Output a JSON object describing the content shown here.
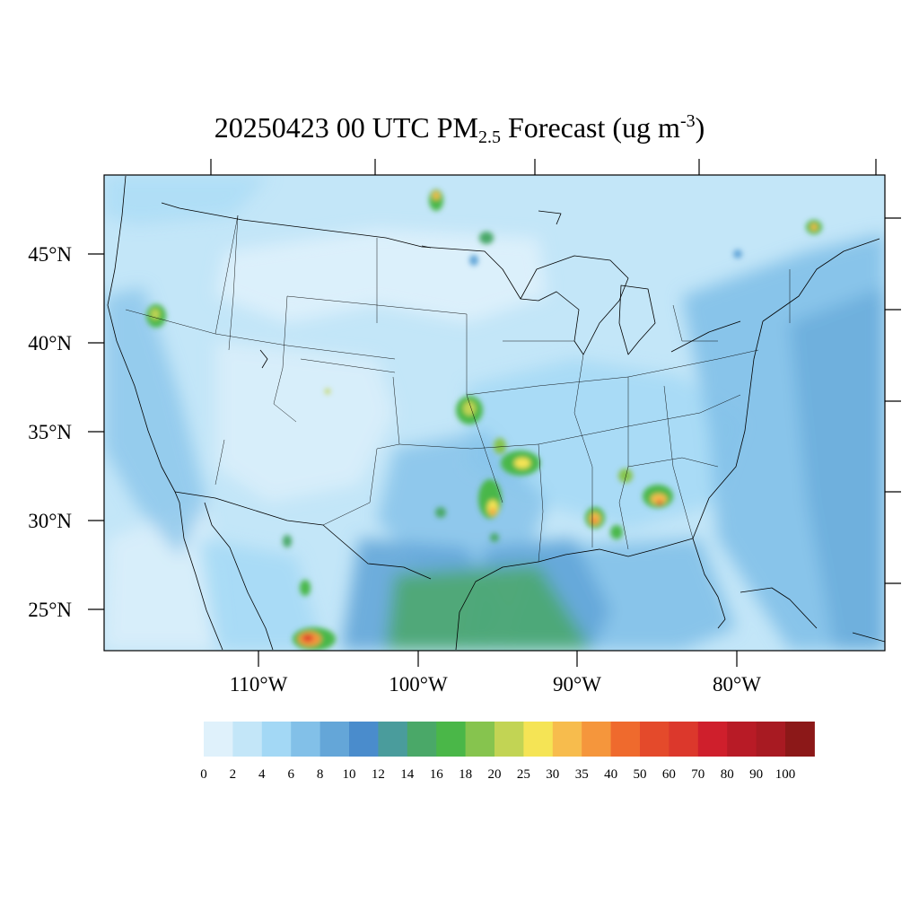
{
  "title": {
    "main": "20250423 00 UTC PM",
    "subscript": "2.5",
    "tail": " Forecast (ug m",
    "superscript": "-3",
    "close": ")"
  },
  "axes": {
    "lat_labels": [
      "45°N",
      "40°N",
      "35°N",
      "30°N",
      "25°N"
    ],
    "lon_labels": [
      "110°W",
      "100°W",
      "90°W",
      "80°W"
    ]
  },
  "colorbar": {
    "labels": [
      "0",
      "2",
      "4",
      "6",
      "8",
      "10",
      "12",
      "14",
      "16",
      "18",
      "20",
      "25",
      "30",
      "35",
      "40",
      "50",
      "60",
      "70",
      "80",
      "90",
      "100"
    ],
    "colors": [
      "#dff1fb",
      "#c3e6f8",
      "#a3d8f5",
      "#82c0e8",
      "#64a6d8",
      "#4a8ccc",
      "#4a9c9c",
      "#4aa868",
      "#4ab748",
      "#86c44e",
      "#c2d454",
      "#f5e455",
      "#f7bc4d",
      "#f5963c",
      "#ef6a2d",
      "#e44a2b",
      "#dc382c",
      "#cf1f2c",
      "#b81b26",
      "#a81a22",
      "#8c1818"
    ]
  },
  "hotspots": [
    {
      "name": "hotspot-oregon",
      "max_ugm3": 25
    },
    {
      "name": "hotspot-minnesota-north",
      "max_ugm3": 40
    },
    {
      "name": "hotspot-kansas",
      "max_ugm3": 25
    },
    {
      "name": "hotspot-oklahoma",
      "max_ugm3": 30
    },
    {
      "name": "hotspot-arkansas",
      "max_ugm3": 25
    },
    {
      "name": "hotspot-east-texas",
      "max_ugm3": 35
    },
    {
      "name": "hotspot-mississippi",
      "max_ugm3": 40
    },
    {
      "name": "hotspot-alabama",
      "max_ugm3": 25
    },
    {
      "name": "hotspot-georgia",
      "max_ugm3": 40
    },
    {
      "name": "hotspot-new-hampshire",
      "max_ugm3": 35
    },
    {
      "name": "hotspot-northern-mexico",
      "max_ugm3": 50
    }
  ]
}
